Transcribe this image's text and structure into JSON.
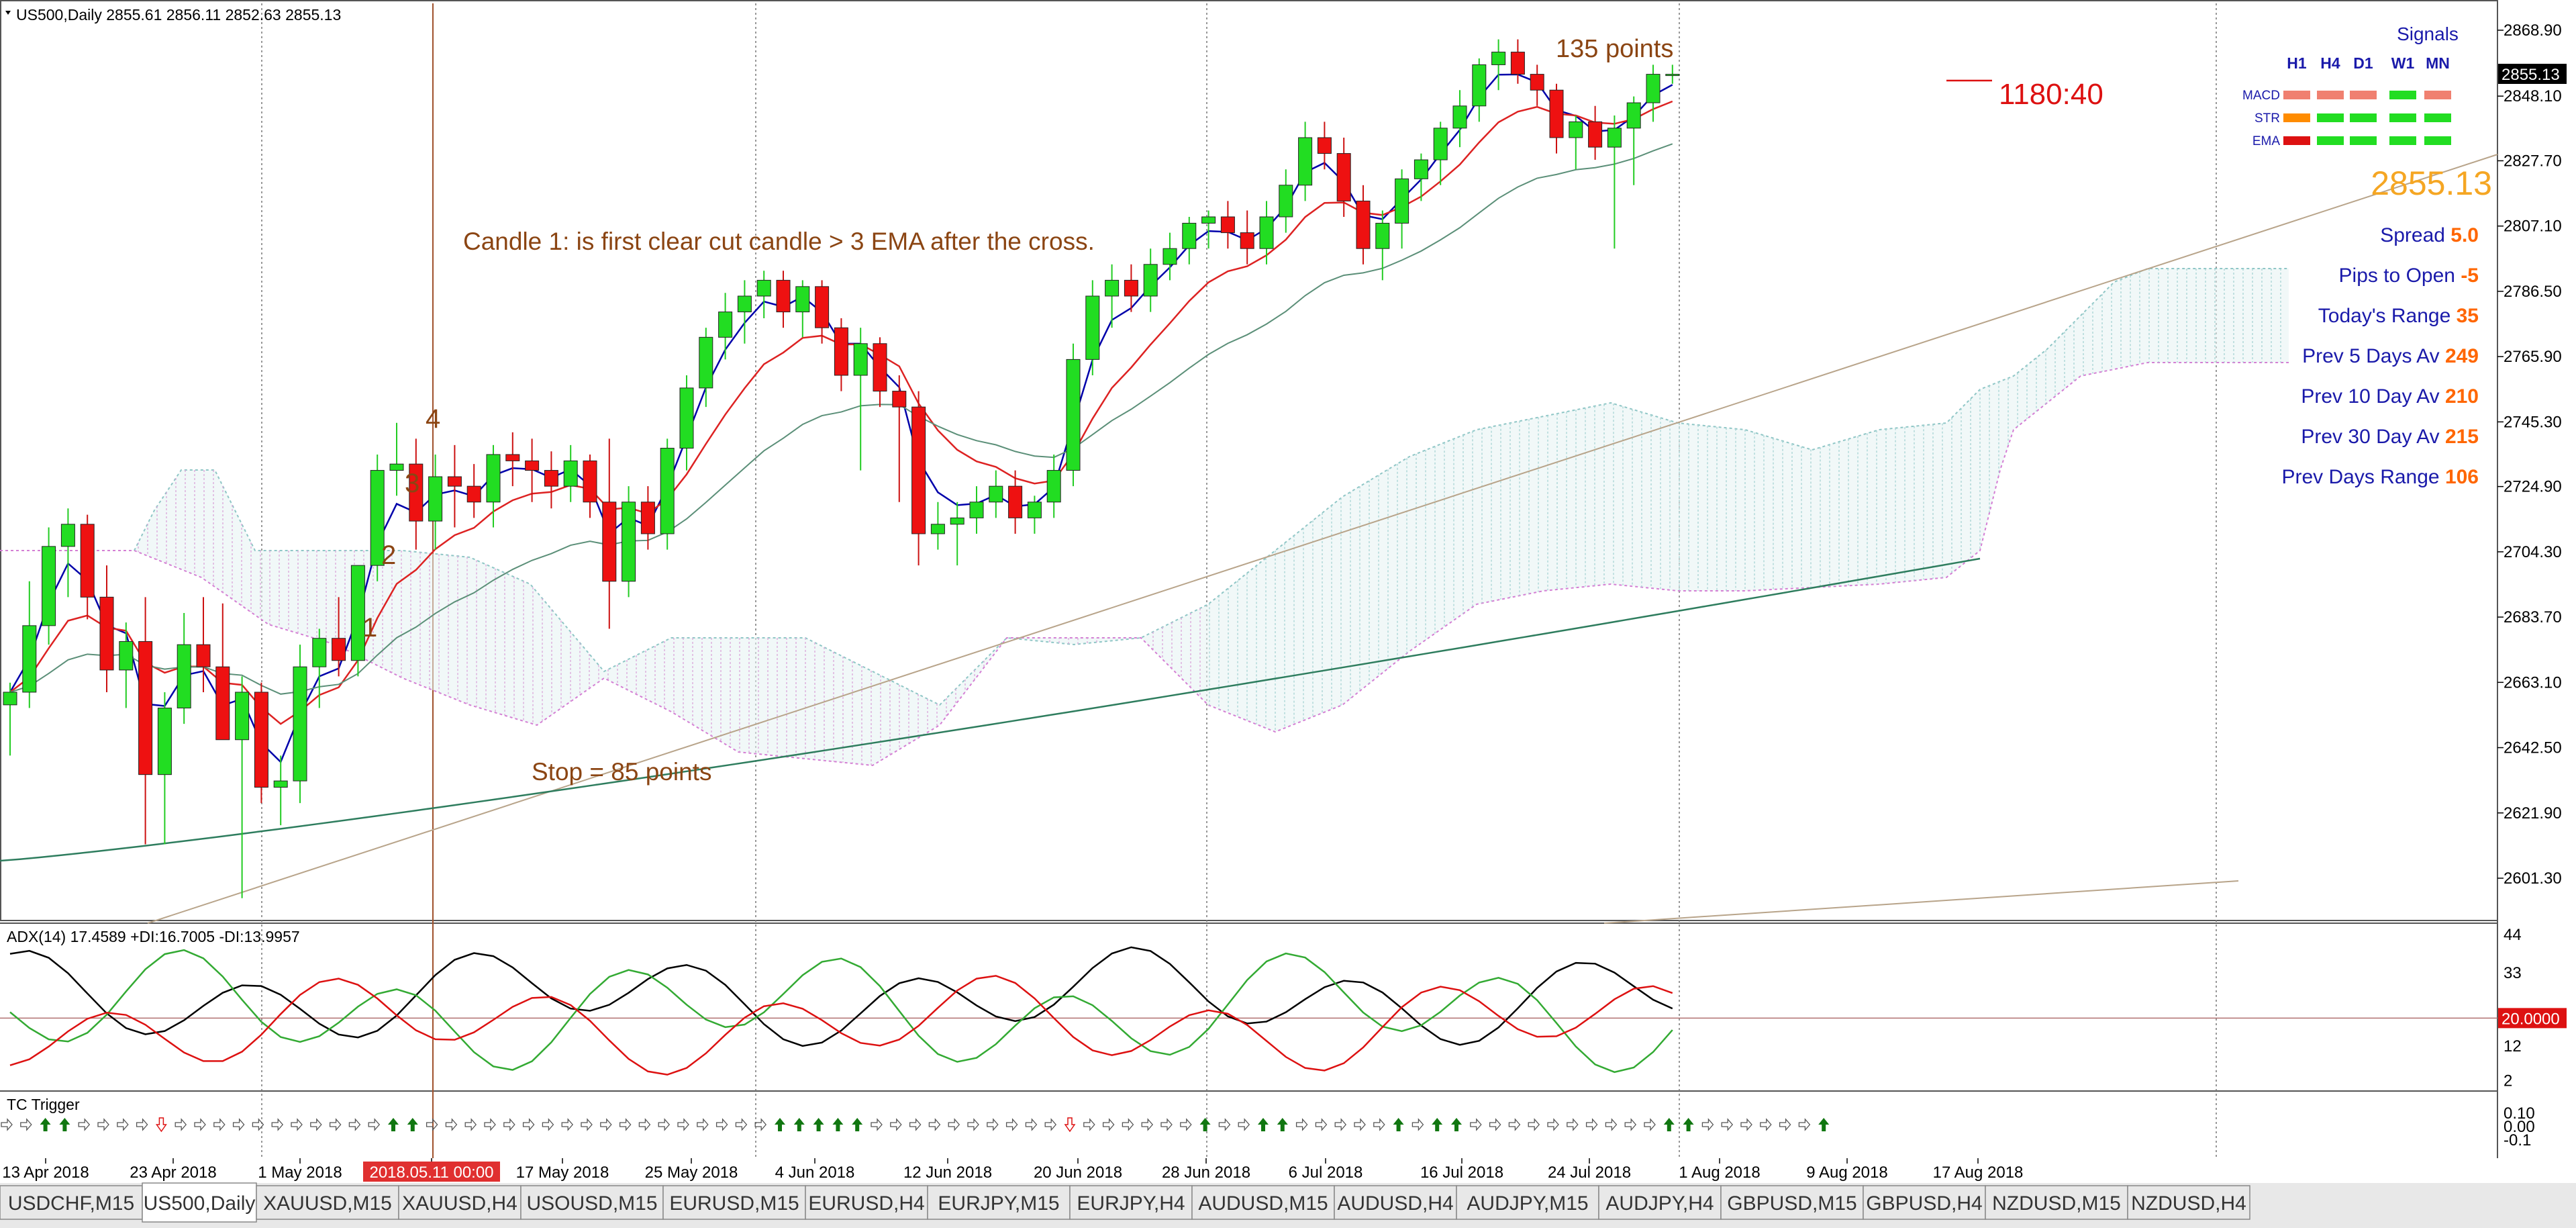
{
  "symbol": {
    "title": "US500,Daily",
    "ohlc": "2855.61 2856.11 2852.63 2855.13"
  },
  "annotations": {
    "points_135": "135 points",
    "candle_note": "Candle 1: is first clear cut candle > 3 EMA after the cross.",
    "stop_note": "Stop = 85 points",
    "timer": "1180:40",
    "marker_1": "1",
    "marker_2": "2",
    "marker_3": "3",
    "marker_4": "4"
  },
  "signals": {
    "title": "Signals",
    "timeframes": [
      "H1",
      "H4",
      "D1",
      "W1",
      "MN"
    ],
    "rows": [
      {
        "label": "MACD",
        "cells": [
          "salmon",
          "salmon",
          "salmon",
          "green",
          "salmon"
        ]
      },
      {
        "label": "STR",
        "cells": [
          "orange",
          "green",
          "green",
          "green",
          "green"
        ]
      },
      {
        "label": "EMA",
        "cells": [
          "red",
          "green",
          "green",
          "green",
          "green"
        ]
      }
    ],
    "cell_colors": {
      "salmon": "#f08070",
      "orange": "#ff8c00",
      "green": "#22dd22",
      "red": "#dd1111"
    }
  },
  "info": {
    "price": "2855.13",
    "rows": [
      {
        "label": "Spread",
        "value": "5.0"
      },
      {
        "label": "Pips to Open",
        "value": "-5"
      },
      {
        "label": "Today's Range",
        "value": "35"
      },
      {
        "label": "Prev 5 Days Av",
        "value": "249"
      },
      {
        "label": "Prev 10 Day Av",
        "value": "210"
      },
      {
        "label": "Prev 30 Day Av",
        "value": "215"
      },
      {
        "label": "Prev Days Range",
        "value": "106"
      }
    ]
  },
  "adx_panel": {
    "title": "ADX(14) 17.4589 +DI:16.7005 -DI:13.9957",
    "level_label": "20.0000",
    "ticks": [
      "44",
      "33",
      "12",
      "2"
    ]
  },
  "tc_panel": {
    "title": "TC Trigger",
    "ticks": [
      "0.10",
      "0.00",
      "-0.1"
    ],
    "arrows": "wwggwwwwrwwwwwwwwwwwggwwwwwwwwwwwwwwwwwwgggggwwwwwwwwwwrwwwwwwgwwggwwwwwgwggwwwwwwwwwwggwwwwwwg"
  },
  "chart_data": {
    "type": "candlestick",
    "y_ticks": [
      2868.9,
      2848.1,
      2827.7,
      2807.1,
      2786.5,
      2765.9,
      2745.3,
      2724.9,
      2704.3,
      2683.7,
      2663.1,
      2642.5,
      2621.9,
      2601.3
    ],
    "ylim": [
      2590.4,
      2873.0
    ],
    "current_price": "2855.13",
    "x_labels": [
      "13 Apr 2018",
      "23 Apr 2018",
      "1 May 2018",
      "2018.05.11 00:00",
      "17 May 2018",
      "25 May 2018",
      "4 Jun 2018",
      "12 Jun 2018",
      "20 Jun 2018",
      "28 Jun 2018",
      "6 Jul 2018",
      "16 Jul 2018",
      "24 Jul 2018",
      "1 Aug 2018",
      "9 Aug 2018",
      "17 Aug 2018"
    ],
    "candles": [
      [
        2656,
        2663,
        2640,
        2660
      ],
      [
        2660,
        2695,
        2655,
        2681
      ],
      [
        2681,
        2712,
        2675,
        2706
      ],
      [
        2706,
        2718,
        2690,
        2713
      ],
      [
        2713,
        2716,
        2683,
        2690
      ],
      [
        2690,
        2700,
        2660,
        2667
      ],
      [
        2667,
        2682,
        2655,
        2676
      ],
      [
        2676,
        2690,
        2612,
        2634
      ],
      [
        2634,
        2660,
        2612,
        2655
      ],
      [
        2655,
        2685,
        2650,
        2675
      ],
      [
        2675,
        2690,
        2660,
        2668
      ],
      [
        2668,
        2688,
        2645,
        2645
      ],
      [
        2645,
        2665,
        2595,
        2660
      ],
      [
        2660,
        2663,
        2625,
        2630
      ],
      [
        2630,
        2640,
        2618,
        2632
      ],
      [
        2632,
        2675,
        2625,
        2668
      ],
      [
        2668,
        2680,
        2655,
        2677
      ],
      [
        2677,
        2690,
        2665,
        2670
      ],
      [
        2670,
        2700,
        2665,
        2700
      ],
      [
        2700,
        2735,
        2695,
        2730
      ],
      [
        2730,
        2745,
        2722,
        2732
      ],
      [
        2732,
        2740,
        2705,
        2714
      ],
      [
        2714,
        2735,
        2705,
        2728
      ],
      [
        2728,
        2738,
        2712,
        2725
      ],
      [
        2725,
        2732,
        2715,
        2720
      ],
      [
        2720,
        2738,
        2712,
        2735
      ],
      [
        2735,
        2742,
        2725,
        2733
      ],
      [
        2733,
        2740,
        2720,
        2730
      ],
      [
        2730,
        2736,
        2718,
        2725
      ],
      [
        2725,
        2738,
        2720,
        2733
      ],
      [
        2733,
        2735,
        2715,
        2720
      ],
      [
        2720,
        2740,
        2680,
        2695
      ],
      [
        2695,
        2725,
        2690,
        2720
      ],
      [
        2720,
        2725,
        2705,
        2710
      ],
      [
        2710,
        2740,
        2705,
        2737
      ],
      [
        2737,
        2760,
        2730,
        2756
      ],
      [
        2756,
        2775,
        2750,
        2772
      ],
      [
        2772,
        2786,
        2765,
        2780
      ],
      [
        2780,
        2790,
        2770,
        2785
      ],
      [
        2785,
        2793,
        2778,
        2790
      ],
      [
        2790,
        2793,
        2775,
        2780
      ],
      [
        2780,
        2790,
        2772,
        2788
      ],
      [
        2788,
        2790,
        2770,
        2775
      ],
      [
        2775,
        2778,
        2755,
        2760
      ],
      [
        2760,
        2775,
        2730,
        2770
      ],
      [
        2770,
        2772,
        2750,
        2755
      ],
      [
        2755,
        2760,
        2720,
        2750
      ],
      [
        2750,
        2755,
        2700,
        2710
      ],
      [
        2710,
        2720,
        2705,
        2713
      ],
      [
        2713,
        2720,
        2700,
        2715
      ],
      [
        2715,
        2725,
        2710,
        2720
      ],
      [
        2720,
        2730,
        2715,
        2725
      ],
      [
        2725,
        2730,
        2710,
        2715
      ],
      [
        2715,
        2722,
        2710,
        2720
      ],
      [
        2720,
        2735,
        2715,
        2730
      ],
      [
        2730,
        2770,
        2725,
        2765
      ],
      [
        2765,
        2790,
        2760,
        2785
      ],
      [
        2785,
        2795,
        2775,
        2790
      ],
      [
        2790,
        2795,
        2780,
        2785
      ],
      [
        2785,
        2800,
        2780,
        2795
      ],
      [
        2795,
        2805,
        2790,
        2800
      ],
      [
        2800,
        2810,
        2795,
        2808
      ],
      [
        2808,
        2812,
        2800,
        2810
      ],
      [
        2810,
        2815,
        2800,
        2805
      ],
      [
        2805,
        2812,
        2795,
        2800
      ],
      [
        2800,
        2815,
        2795,
        2810
      ],
      [
        2810,
        2825,
        2805,
        2820
      ],
      [
        2820,
        2840,
        2815,
        2835
      ],
      [
        2835,
        2840,
        2825,
        2830
      ],
      [
        2830,
        2835,
        2810,
        2815
      ],
      [
        2815,
        2820,
        2795,
        2800
      ],
      [
        2800,
        2812,
        2790,
        2808
      ],
      [
        2808,
        2825,
        2800,
        2822
      ],
      [
        2822,
        2830,
        2815,
        2828
      ],
      [
        2828,
        2840,
        2820,
        2838
      ],
      [
        2838,
        2850,
        2832,
        2845
      ],
      [
        2845,
        2860,
        2840,
        2858
      ],
      [
        2858,
        2866,
        2850,
        2862
      ],
      [
        2862,
        2866,
        2852,
        2855
      ],
      [
        2855,
        2858,
        2845,
        2850
      ],
      [
        2850,
        2852,
        2830,
        2835
      ],
      [
        2835,
        2842,
        2825,
        2840
      ],
      [
        2840,
        2845,
        2828,
        2832
      ],
      [
        2832,
        2842,
        2800,
        2838
      ],
      [
        2838,
        2848,
        2820,
        2846
      ],
      [
        2846,
        2858,
        2840,
        2855
      ],
      [
        2855,
        2858,
        2852,
        2855
      ]
    ],
    "series": [
      {
        "name": "EMA 3",
        "color": "#0000aa"
      },
      {
        "name": "EMA 8",
        "color": "#dd2222"
      },
      {
        "name": "EMA 21",
        "color": "#5b8f78"
      },
      {
        "name": "EMA 200",
        "color": "#2e7d5e"
      }
    ]
  },
  "tabs": [
    "USDCHF,M15",
    "US500,Daily",
    "XAUUSD,M15",
    "XAUUSD,H4",
    "USOUSD,M15",
    "EURUSD,M15",
    "EURUSD,H4",
    "EURJPY,M15",
    "EURJPY,H4",
    "AUDUSD,M15",
    "AUDUSD,H4",
    "AUDJPY,M15",
    "AUDJPY,H4",
    "GBPUSD,M15",
    "GBPUSD,H4",
    "NZDUSD,M15",
    "NZDUSD,H4"
  ],
  "active_tab": 1
}
